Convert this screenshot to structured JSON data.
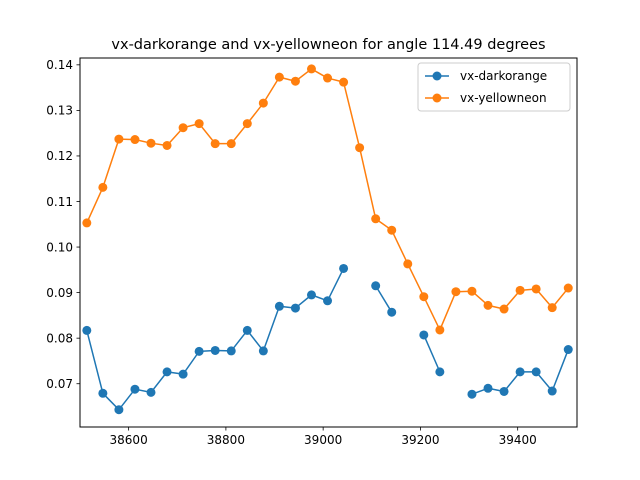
{
  "chart_data": {
    "type": "line",
    "title": "vx-darkorange and vx-yellowneon for angle 114.49 degrees",
    "xlabel": "",
    "ylabel": "",
    "xlim": [
      38500,
      39522
    ],
    "ylim": [
      0.0605,
      0.1415
    ],
    "xticks": [
      38600,
      38800,
      39000,
      39200,
      39400
    ],
    "yticks": [
      0.07,
      0.08,
      0.09,
      0.1,
      0.11,
      0.12,
      0.13,
      0.14
    ],
    "ytick_labels": [
      "0.07",
      "0.08",
      "0.09",
      "0.10",
      "0.11",
      "0.12",
      "0.13",
      "0.14"
    ],
    "legend_position": "top-right",
    "series": [
      {
        "name": "vx-darkorange",
        "color": "#1f77b4",
        "x": [
          38514,
          38547,
          38580,
          38613,
          38646,
          38679,
          38712,
          38745,
          38778,
          38811,
          38844,
          38877,
          38910,
          38943,
          38976,
          39009,
          39042,
          39075,
          39108,
          39141,
          39174,
          39207,
          39240,
          39273,
          39306,
          39339,
          39372,
          39405,
          39438,
          39471,
          39504
        ],
        "y": [
          0.0817,
          0.0679,
          0.0643,
          0.0688,
          0.0681,
          0.0726,
          0.0721,
          0.0771,
          0.0773,
          0.0772,
          0.0817,
          0.0772,
          0.087,
          0.0866,
          0.0895,
          0.0882,
          0.0953,
          null,
          0.0915,
          0.0857,
          null,
          0.0807,
          0.0726,
          null,
          0.0677,
          0.069,
          0.0683,
          0.0726,
          0.0726,
          0.0684,
          0.0775
        ]
      },
      {
        "name": "vx-yellowneon",
        "color": "#ff7f0e",
        "x": [
          38514,
          38547,
          38580,
          38613,
          38646,
          38679,
          38712,
          38745,
          38778,
          38811,
          38844,
          38877,
          38910,
          38943,
          38976,
          39009,
          39042,
          39075,
          39108,
          39141,
          39174,
          39207,
          39240,
          39273,
          39306,
          39339,
          39372,
          39405,
          39438,
          39471,
          39504
        ],
        "y": [
          0.1053,
          0.1131,
          0.1237,
          0.1236,
          0.1228,
          0.1223,
          0.1262,
          0.1271,
          0.1227,
          0.1227,
          0.1271,
          0.1316,
          0.1373,
          0.1364,
          0.1391,
          0.1371,
          0.1362,
          0.1218,
          0.1062,
          0.1037,
          0.0963,
          0.0891,
          0.0818,
          0.0902,
          0.0903,
          0.0872,
          0.0864,
          0.0905,
          0.0908,
          0.0867,
          0.091
        ]
      }
    ]
  }
}
